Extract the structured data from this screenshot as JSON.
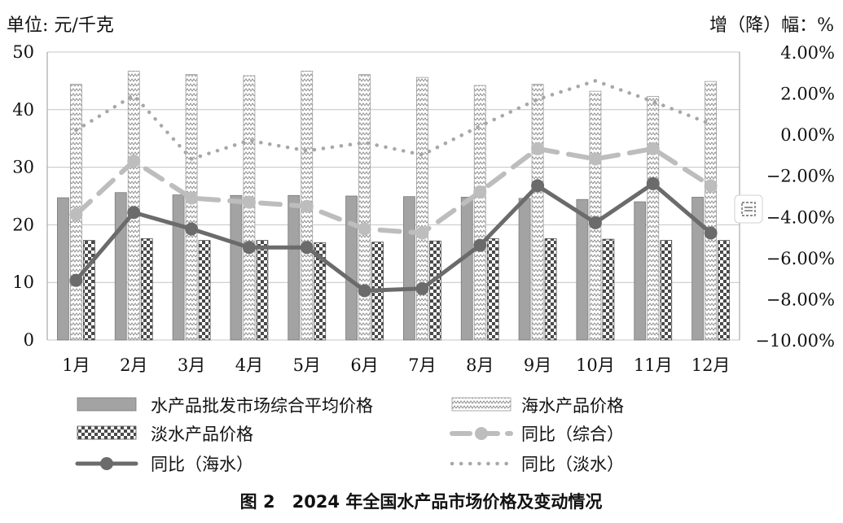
{
  "chart_data": {
    "type": "bar",
    "title": "图 2　2024 年全国水产品市场价格及变动情况",
    "y_left_label": "单位: 元/千克",
    "y_right_label": "增（降）幅：%",
    "categories": [
      "1月",
      "2月",
      "3月",
      "4月",
      "5月",
      "6月",
      "7月",
      "8月",
      "9月",
      "10月",
      "11月",
      "12月"
    ],
    "y_left_ticks": [
      "0",
      "10",
      "20",
      "30",
      "40",
      "50"
    ],
    "y_right_ticks": [
      "4.00%",
      "2.00%",
      "0.00%",
      "−2.00%",
      "−4.00%",
      "−6.00%",
      "−8.00%",
      "−10.00%"
    ],
    "ylim_left": [
      0,
      50
    ],
    "ylim_right": [
      -10,
      4
    ],
    "grid": true,
    "bar_series": [
      {
        "name": "水产品批发市场综合平均价格",
        "pattern": "solid-gray",
        "color": "#9e9e9e",
        "values": [
          24.7,
          25.6,
          25.2,
          25.1,
          25.1,
          25.0,
          24.9,
          24.8,
          24.6,
          24.4,
          24.0,
          24.8
        ]
      },
      {
        "name": "海水产品价格",
        "pattern": "zigzag-light",
        "color": "#c8c8c8",
        "values": [
          44.4,
          46.7,
          46.1,
          45.9,
          46.7,
          46.1,
          45.6,
          44.2,
          44.4,
          43.2,
          42.3,
          44.9
        ]
      },
      {
        "name": "淡水产品价格",
        "pattern": "checker",
        "color": "#555555",
        "values": [
          17.3,
          17.6,
          17.3,
          17.3,
          16.9,
          17.0,
          17.2,
          17.6,
          17.6,
          17.5,
          17.3,
          17.3
        ]
      }
    ],
    "line_series": [
      {
        "name": "同比（综合）",
        "style": "dashed-marker",
        "color": "#b8b8b8",
        "values": [
          -3.9,
          -1.3,
          -3.1,
          -3.3,
          -3.5,
          -4.6,
          -4.8,
          -2.8,
          -0.7,
          -1.2,
          -0.7,
          -2.5
        ]
      },
      {
        "name": "同比（海水）",
        "style": "solid-marker",
        "color": "#6b6b6b",
        "values": [
          -7.1,
          -3.8,
          -4.6,
          -5.5,
          -5.5,
          -7.6,
          -7.5,
          -5.4,
          -2.5,
          -4.3,
          -2.4,
          -4.8
        ]
      },
      {
        "name": "同比（淡水）",
        "style": "dotted",
        "color": "#a8a8a8",
        "values": [
          0.2,
          1.9,
          -1.2,
          -0.3,
          -0.8,
          -0.4,
          -1.0,
          0.4,
          1.7,
          2.6,
          1.6,
          0.5
        ]
      }
    ]
  }
}
